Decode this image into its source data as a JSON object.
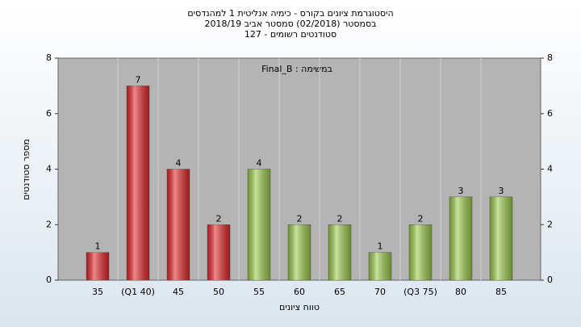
{
  "chart_data": {
    "type": "bar",
    "title": [
      "היסטוגרמת ציונים בקורס - כימיה אנליטית 1 למהנדסים",
      "בסמסטר  (02/2018)  סמסטר אביב 2018/19",
      "סטודנטים רשומים - 127"
    ],
    "annotation": "במשימה : Final_B",
    "x_label": "טווח ציונים",
    "y_label": "מספר סטודנטים",
    "categories": [
      "35",
      "(Q1 40)",
      "45",
      "50",
      "55",
      "60",
      "65",
      "70",
      "(Q3 75)",
      "80",
      "85"
    ],
    "values": [
      1,
      7,
      4,
      2,
      4,
      2,
      2,
      1,
      2,
      3,
      3
    ],
    "colors": [
      "#e3262a",
      "#e3262a",
      "#e3262a",
      "#e3262a",
      "#9ccb4a",
      "#9ccb4a",
      "#9ccb4a",
      "#9ccb4a",
      "#9ccb4a",
      "#9ccb4a",
      "#9ccb4a"
    ],
    "ylim": [
      0,
      8
    ],
    "yticks": [
      0,
      2,
      4,
      6,
      8
    ],
    "y2lim": [
      0,
      8
    ],
    "y2ticks": [
      0,
      2,
      4,
      6,
      8
    ],
    "grid": true
  }
}
